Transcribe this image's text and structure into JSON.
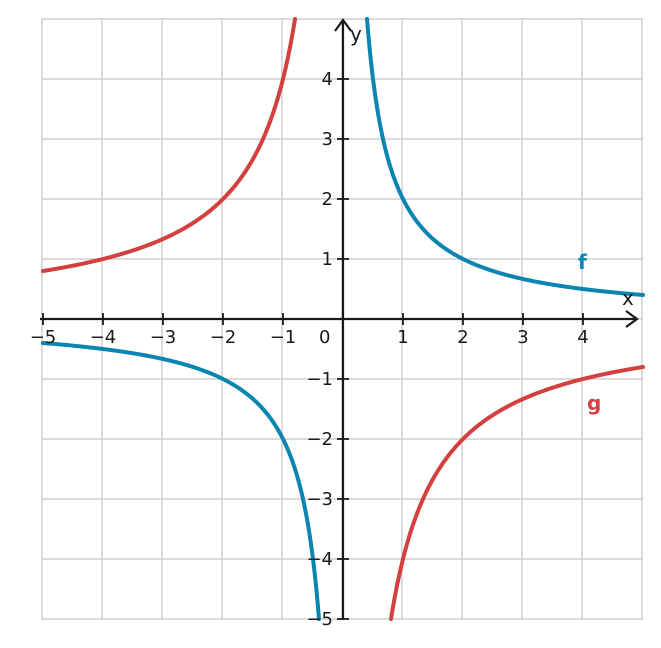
{
  "chart_data": {
    "type": "line",
    "title": "",
    "xlabel": "x",
    "ylabel": "y",
    "xlim": [
      -5,
      5
    ],
    "ylim": [
      -5,
      5
    ],
    "grid": true,
    "x_ticks": [
      -5,
      -4,
      -3,
      -2,
      -1,
      1,
      2,
      3,
      4
    ],
    "x_tick_labels": [
      "−5",
      "−4",
      "−3",
      "−2",
      "−1",
      "1",
      "2",
      "3",
      "4"
    ],
    "y_ticks": [
      4,
      3,
      2,
      1,
      -1,
      -2,
      -3,
      -4,
      -5
    ],
    "y_tick_labels": [
      "4",
      "3",
      "2",
      "1",
      "−1",
      "−2",
      "−3",
      "−4",
      "−5"
    ],
    "origin_label": "0",
    "series": [
      {
        "name": "f",
        "color": "#0a85b0",
        "points": [
          [
            -5,
            -0.4
          ],
          [
            -4,
            -0.5
          ],
          [
            -3,
            -0.67
          ],
          [
            -2,
            -1
          ],
          [
            -1,
            -2
          ],
          [
            -0.5,
            -4
          ],
          [
            -0.4,
            -5
          ],
          [
            0.4,
            5
          ],
          [
            0.5,
            4
          ],
          [
            1,
            2
          ],
          [
            2,
            1
          ],
          [
            3,
            0.67
          ],
          [
            4,
            0.5
          ],
          [
            5,
            0.4
          ]
        ]
      },
      {
        "name": "g",
        "color": "#d44040",
        "points": [
          [
            -5,
            0.8
          ],
          [
            -4,
            1
          ],
          [
            -3,
            1.33
          ],
          [
            -2,
            2
          ],
          [
            -1,
            4
          ],
          [
            -0.8,
            5
          ],
          [
            0.8,
            -5
          ],
          [
            1,
            -4
          ],
          [
            2,
            -2
          ],
          [
            3,
            -1.33
          ],
          [
            4,
            -1
          ],
          [
            5,
            -0.8
          ]
        ]
      }
    ]
  }
}
